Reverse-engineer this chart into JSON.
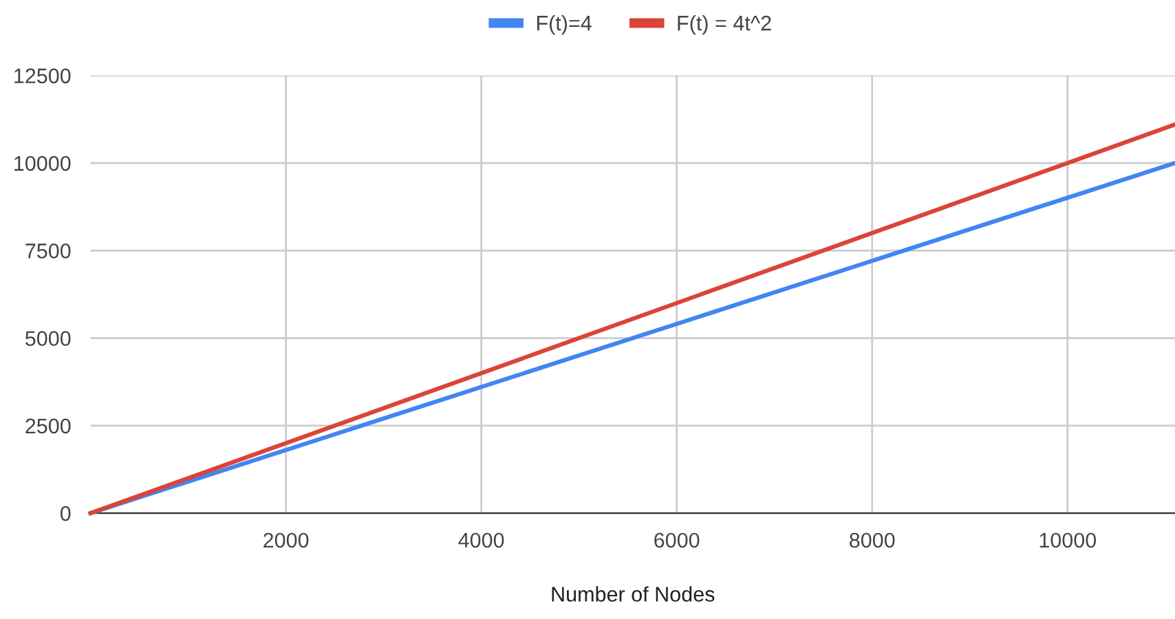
{
  "chart_data": {
    "type": "line",
    "xlabel": "Number of Nodes",
    "x": [
      0,
      11100
    ],
    "series": [
      {
        "name": "F(t)=4",
        "color": "#4285f4",
        "values": [
          0,
          10000
        ]
      },
      {
        "name": "F(t) = 4t^2",
        "color": "#db4437",
        "values": [
          0,
          11100
        ]
      }
    ],
    "xlim": [
      0,
      11100
    ],
    "xticks": [
      2000,
      4000,
      6000,
      8000,
      10000
    ],
    "ylim": [
      0,
      12500
    ],
    "yticks": [
      0,
      2500,
      5000,
      7500,
      10000,
      12500
    ],
    "grid": true,
    "legend": "top",
    "marker": "none",
    "line_style": "solid"
  }
}
